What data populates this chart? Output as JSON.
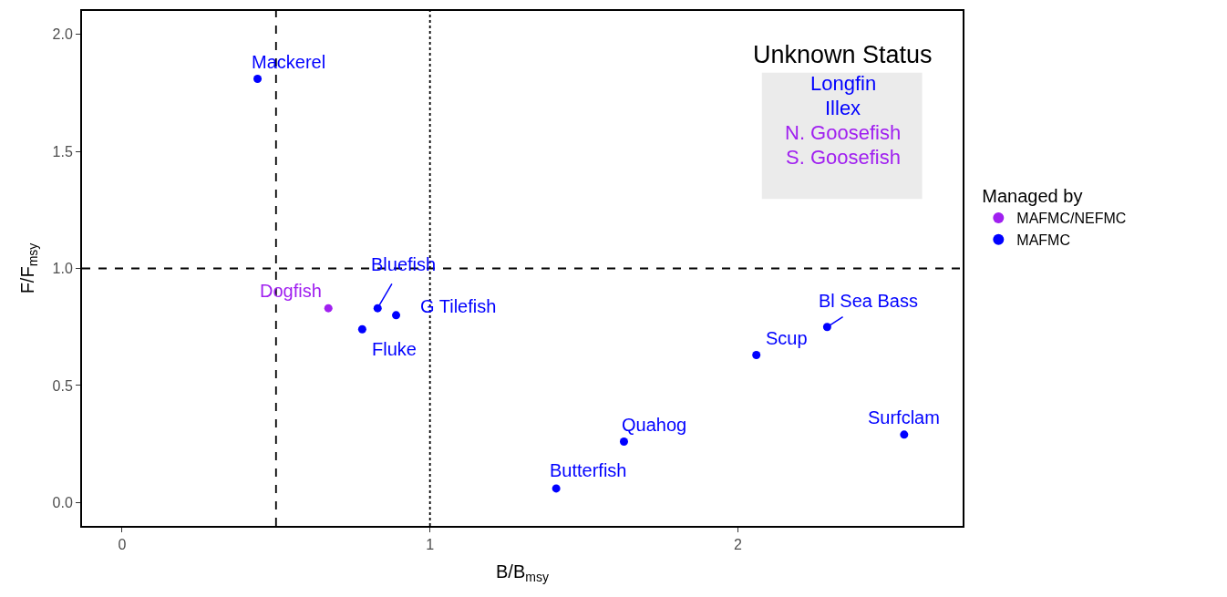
{
  "chart_data": {
    "type": "scatter",
    "xlabel": "B/B$_{msy}$",
    "ylabel": "F/F$_{msy}$",
    "legend_title": "Managed by",
    "legend": "right",
    "marker": "circle",
    "grid": false,
    "xlim": [
      -0.13,
      2.73
    ],
    "xticks": [
      0,
      1,
      2
    ],
    "ylim": [
      -0.1,
      2.1
    ],
    "yticks": [
      {
        "value": 0,
        "label": "0.0"
      },
      {
        "value": 0.5,
        "label": "0.5"
      },
      {
        "value": 1,
        "label": "1.0"
      },
      {
        "value": 1.5,
        "label": "1.5"
      },
      {
        "value": 2,
        "label": "2.0"
      }
    ],
    "series": [
      {
        "name": "MAFMC/NEFMC",
        "color": "#a020f0",
        "x": [
          0.67
        ],
        "values": [
          0.83
        ]
      },
      {
        "name": "MAFMC",
        "color": "#0000ff",
        "x": [
          0.44,
          0.83,
          0.78,
          0.89,
          1.41,
          1.63,
          2.06,
          2.29,
          2.54
        ],
        "values": [
          1.81,
          0.83,
          0.74,
          0.8,
          0.06,
          0.26,
          0.63,
          0.75,
          0.29
        ]
      }
    ],
    "ref_lines": [
      {
        "axis": "x",
        "value": 0.5,
        "line_style": "dashed",
        "color": "#000000"
      },
      {
        "axis": "x",
        "value": 1,
        "line_style": "dotted",
        "color": "#000000"
      },
      {
        "axis": "y",
        "value": 1,
        "line_style": "dashed",
        "color": "#000000"
      }
    ],
    "annotations": [
      {
        "text": "Mackerel",
        "x": 0.44,
        "y": 1.81
      },
      {
        "text": "Dogfish",
        "x": 0.67,
        "y": 0.83
      },
      {
        "text": "Bluefish",
        "x": 0.83,
        "y": 0.83
      },
      {
        "text": "G Tilefish",
        "x": 0.89,
        "y": 0.8
      },
      {
        "text": "Fluke",
        "x": 0.78,
        "y": 0.74
      },
      {
        "text": "Butterfish",
        "x": 1.41,
        "y": 0.06
      },
      {
        "text": "Quahog",
        "x": 1.63,
        "y": 0.26
      },
      {
        "text": "Scup",
        "x": 2.06,
        "y": 0.63
      },
      {
        "text": "Bl Sea Bass",
        "x": 2.29,
        "y": 0.75
      },
      {
        "text": "Surfclam",
        "x": 2.54,
        "y": 0.29
      },
      "Unknown Status",
      "Longfin",
      "Illex",
      "N. Goosefish",
      "S. Goosefish"
    ]
  }
}
